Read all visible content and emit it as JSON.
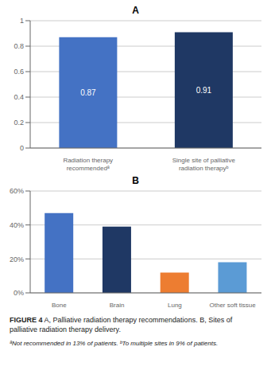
{
  "chart_data": [
    {
      "type": "bar",
      "title": "A",
      "categories": [
        "Radiation therapy\nrecommendedª",
        "Single site of palliative\nradiation therapyᵇ"
      ],
      "values": [
        0.87,
        0.91
      ],
      "colors": [
        "#4472C4",
        "#1F3864"
      ],
      "ylim": [
        0,
        1
      ],
      "yticks": [
        0,
        0.2,
        0.4,
        0.6,
        0.8,
        1
      ],
      "grid": true,
      "data_labels": true
    },
    {
      "type": "bar",
      "title": "B",
      "categories": [
        "Bone",
        "Brain",
        "Lung",
        "Other soft tissue"
      ],
      "values": [
        0.47,
        0.39,
        0.12,
        0.18
      ],
      "colors": [
        "#4472C4",
        "#1F3864",
        "#ED7D31",
        "#5B9BD5"
      ],
      "ylim": [
        0,
        0.6
      ],
      "yticks": [
        {
          "value": 0,
          "label": "0%"
        },
        {
          "value": 0.2,
          "label": "20%"
        },
        {
          "value": 0.4,
          "label": "40%"
        },
        {
          "value": 0.6,
          "label": "60%"
        }
      ],
      "grid": true,
      "data_labels": false
    }
  ],
  "annotations": [
    "FIGURE 4",
    "A, Palliative radiation therapy recommendations. B, Sites of palliative radiation therapy delivery.",
    "ªNot recommended in 13% of patients. ᵇTo multiple sites in 9% of patients."
  ]
}
